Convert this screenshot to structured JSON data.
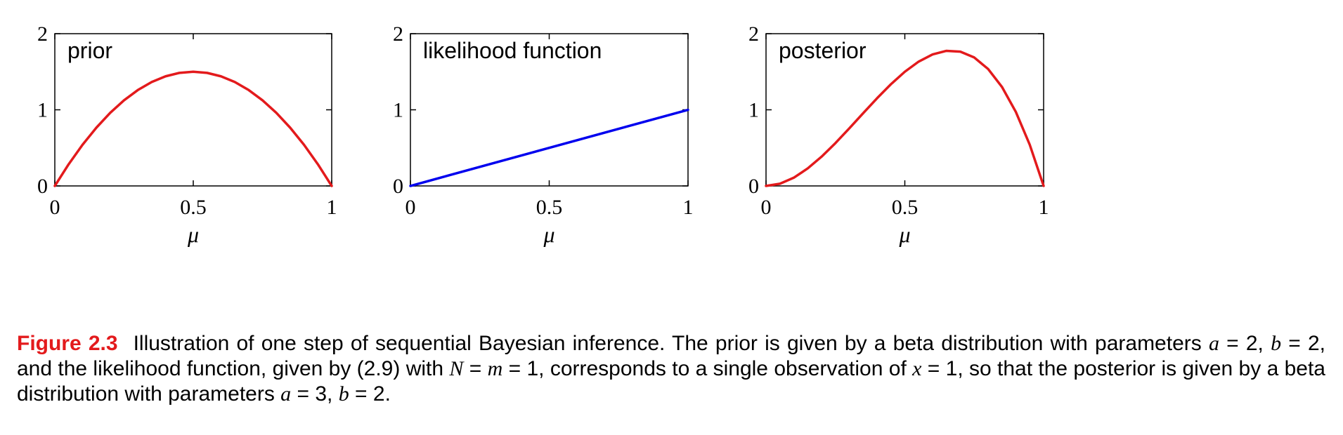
{
  "chart_data": [
    {
      "type": "line",
      "title": "prior",
      "xlabel": "μ",
      "xlim": [
        0,
        1
      ],
      "ylim": [
        0,
        2
      ],
      "xticks": [
        "0",
        "0.5",
        "1"
      ],
      "yticks": [
        "0",
        "1",
        "2"
      ],
      "series": [
        {
          "color": "#e31a1c",
          "x": [
            0,
            0.05,
            0.1,
            0.15,
            0.2,
            0.25,
            0.3,
            0.35,
            0.4,
            0.45,
            0.5,
            0.55,
            0.6,
            0.65,
            0.7,
            0.75,
            0.8,
            0.85,
            0.9,
            0.95,
            1
          ],
          "y": [
            0,
            0.285,
            0.54,
            0.765,
            0.96,
            1.125,
            1.26,
            1.365,
            1.44,
            1.485,
            1.5,
            1.485,
            1.44,
            1.365,
            1.26,
            1.125,
            0.96,
            0.765,
            0.54,
            0.285,
            0
          ]
        }
      ]
    },
    {
      "type": "line",
      "title": "likelihood function",
      "xlabel": "μ",
      "xlim": [
        0,
        1
      ],
      "ylim": [
        0,
        2
      ],
      "xticks": [
        "0",
        "0.5",
        "1"
      ],
      "yticks": [
        "0",
        "1",
        "2"
      ],
      "series": [
        {
          "color": "#0000ee",
          "x": [
            0,
            1
          ],
          "y": [
            0,
            1
          ]
        }
      ]
    },
    {
      "type": "line",
      "title": "posterior",
      "xlabel": "μ",
      "xlim": [
        0,
        1
      ],
      "ylim": [
        0,
        2
      ],
      "xticks": [
        "0",
        "0.5",
        "1"
      ],
      "yticks": [
        "0",
        "1",
        "2"
      ],
      "series": [
        {
          "color": "#e31a1c",
          "x": [
            0,
            0.05,
            0.1,
            0.15,
            0.2,
            0.25,
            0.3,
            0.35,
            0.4,
            0.45,
            0.5,
            0.55,
            0.6,
            0.65,
            0.7,
            0.75,
            0.8,
            0.85,
            0.9,
            0.95,
            1
          ],
          "y": [
            0,
            0.0285,
            0.108,
            0.2295,
            0.384,
            0.5625,
            0.756,
            0.9555,
            1.152,
            1.3365,
            1.5,
            1.6335,
            1.728,
            1.7745,
            1.764,
            1.6875,
            1.536,
            1.3005,
            0.972,
            0.5415,
            0
          ]
        }
      ]
    }
  ],
  "caption": {
    "label": "Figure 2.3",
    "line1": [
      {
        "t": "Illustration of one step of sequential Bayesian inference. The prior is given by a beta distribution "
      },
      {
        "t": "with parameters "
      },
      {
        "m": "a"
      },
      {
        "t": " = 2, "
      },
      {
        "m": "b"
      },
      {
        "t": " = 2, and the likelihood function, given by (2.9) with "
      },
      {
        "m": "N"
      },
      {
        "t": " = "
      },
      {
        "m": "m"
      },
      {
        "t": " = 1, corresponds to a single observation of "
      },
      {
        "m": "x"
      },
      {
        "t": " = 1, so that the posterior is given by a beta distribution with parameters "
      },
      {
        "m": "a"
      },
      {
        "t": " = 3, "
      },
      {
        "m": "b"
      },
      {
        "t": " = 2."
      }
    ]
  }
}
